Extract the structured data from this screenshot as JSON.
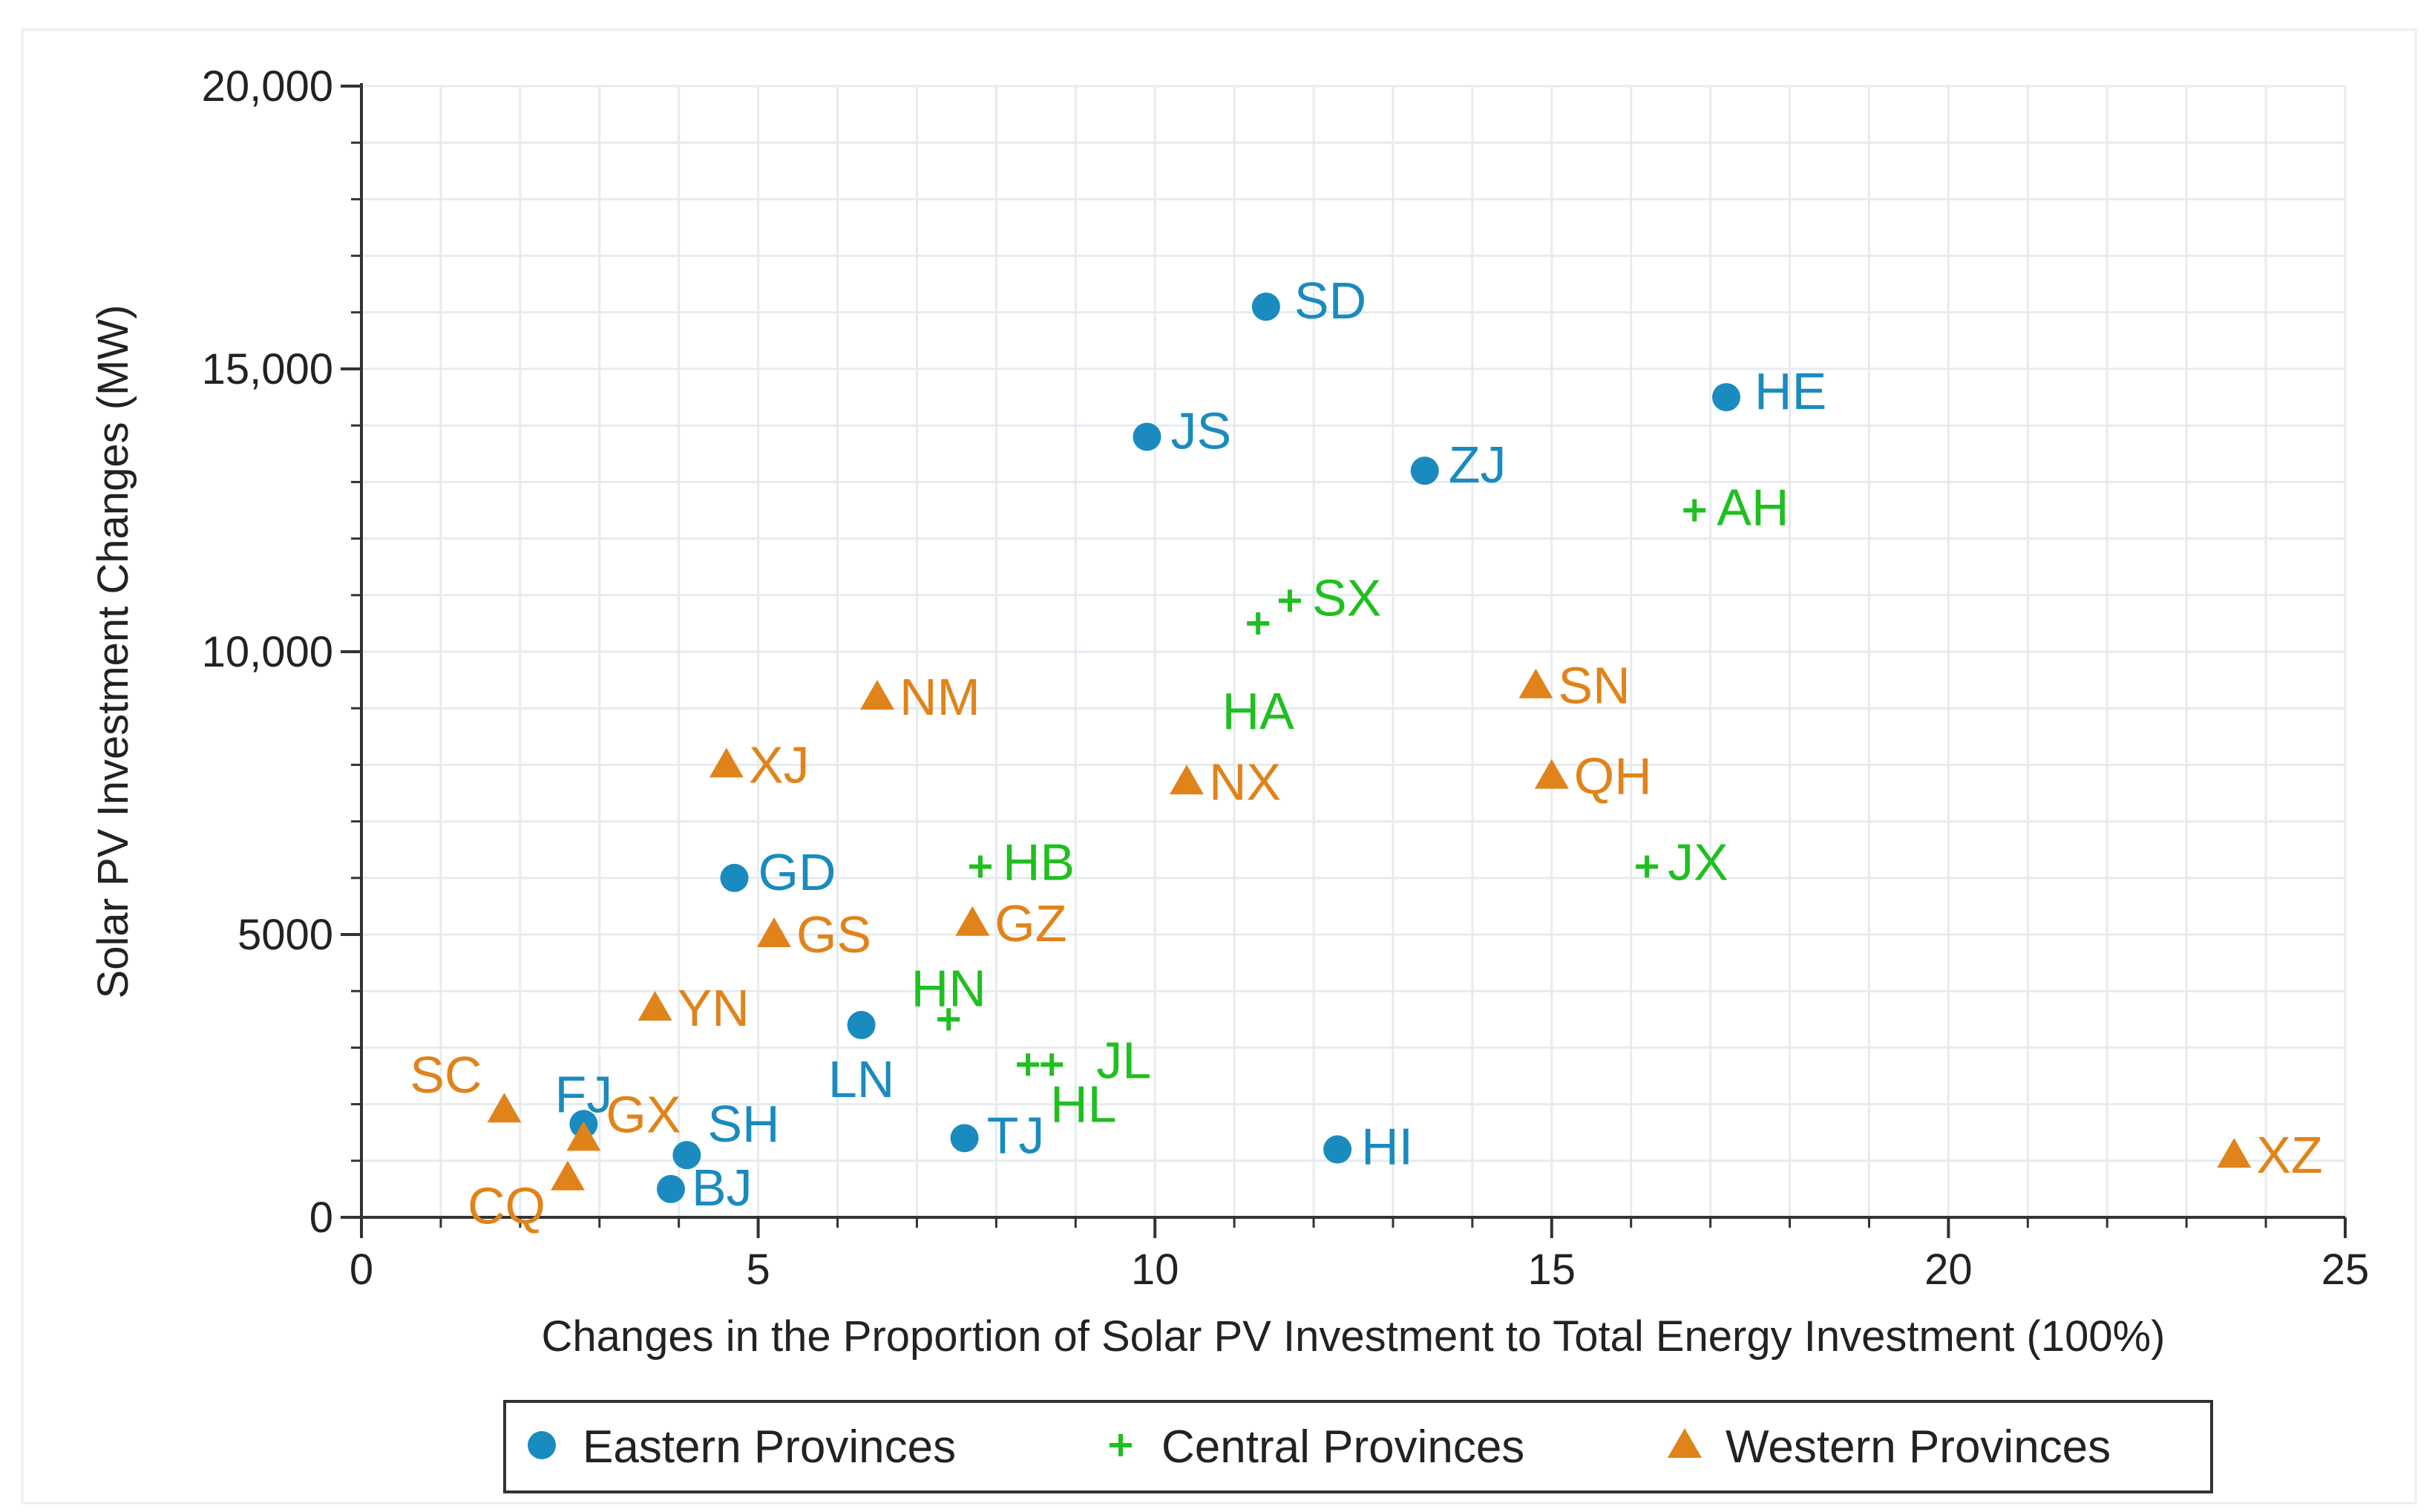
{
  "chart_data": {
    "type": "scatter",
    "title": "",
    "xlabel": "Changes in the Proportion of Solar PV Investment to Total Energy Investment (100%)",
    "ylabel": "Solar PV Investment Changes (MW)",
    "xlim": [
      0,
      25
    ],
    "ylim": [
      0,
      20000
    ],
    "grid": true,
    "x_ticks": [
      0,
      5,
      10,
      15,
      20,
      25
    ],
    "x_tick_labels": [
      "0",
      "5",
      "10",
      "15",
      "20",
      "25"
    ],
    "y_ticks": [
      0,
      5000,
      10000,
      15000,
      20000
    ],
    "y_tick_labels": [
      "0",
      "5000",
      "10,000",
      "15,000",
      "20,000"
    ],
    "legend_position": "bottom",
    "series": [
      {
        "name": "Eastern Provinces",
        "marker": "circle",
        "color": "#1a8bbf",
        "points": [
          {
            "label": "SD",
            "x": 11.4,
            "y": 16100
          },
          {
            "label": "HE",
            "x": 17.2,
            "y": 14500
          },
          {
            "label": "JS",
            "x": 9.9,
            "y": 13800
          },
          {
            "label": "ZJ",
            "x": 13.4,
            "y": 13200
          },
          {
            "label": "GD",
            "x": 4.7,
            "y": 6000
          },
          {
            "label": "LN",
            "x": 6.3,
            "y": 3400
          },
          {
            "label": "FJ",
            "x": 2.8,
            "y": 1650
          },
          {
            "label": "SH",
            "x": 4.1,
            "y": 1100
          },
          {
            "label": "BJ",
            "x": 3.9,
            "y": 500
          },
          {
            "label": "TJ",
            "x": 7.6,
            "y": 1400
          },
          {
            "label": "HI",
            "x": 12.3,
            "y": 1200
          }
        ]
      },
      {
        "name": "Central Provinces",
        "marker": "plus",
        "color": "#1fbf1f",
        "points": [
          {
            "label": "AH",
            "x": 16.8,
            "y": 12500
          },
          {
            "label": "SX",
            "x": 11.7,
            "y": 10900
          },
          {
            "label": "HA",
            "x": 11.3,
            "y": 10500
          },
          {
            "label": "HB",
            "x": 7.8,
            "y": 6200
          },
          {
            "label": "JX",
            "x": 16.2,
            "y": 6200
          },
          {
            "label": "HN",
            "x": 7.4,
            "y": 3500
          },
          {
            "label": "HL",
            "x": 8.4,
            "y": 2700
          },
          {
            "label": "JL",
            "x": 8.7,
            "y": 2700
          }
        ]
      },
      {
        "name": "Western Provinces",
        "marker": "triangle",
        "color": "#e0831a",
        "points": [
          {
            "label": "NM",
            "x": 6.5,
            "y": 9200
          },
          {
            "label": "SN",
            "x": 14.8,
            "y": 9400
          },
          {
            "label": "XJ",
            "x": 4.6,
            "y": 8000
          },
          {
            "label": "NX",
            "x": 10.4,
            "y": 7700
          },
          {
            "label": "QH",
            "x": 15.0,
            "y": 7800
          },
          {
            "label": "GS",
            "x": 5.2,
            "y": 5000
          },
          {
            "label": "GZ",
            "x": 7.7,
            "y": 5200
          },
          {
            "label": "YN",
            "x": 3.7,
            "y": 3700
          },
          {
            "label": "SC",
            "x": 1.8,
            "y": 1900
          },
          {
            "label": "GX",
            "x": 2.8,
            "y": 1400
          },
          {
            "label": "CQ",
            "x": 2.6,
            "y": 700
          },
          {
            "label": "XZ",
            "x": 23.6,
            "y": 1100
          }
        ]
      }
    ]
  }
}
